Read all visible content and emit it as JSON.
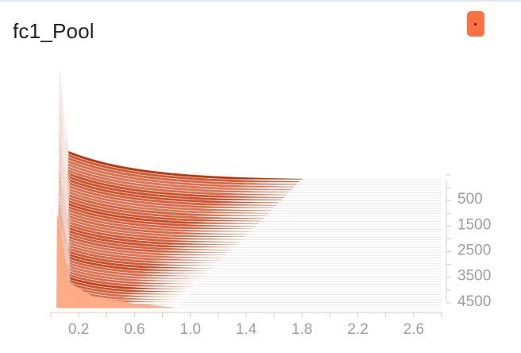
{
  "title": "fc1_Pool",
  "colors": {
    "chip": "#ff7043",
    "slice_light": "#ffd2bf",
    "slice_dark": "#bf360c",
    "axis_text": "#9e9e9e",
    "axis_line": "#cccccc"
  },
  "chart_data": {
    "type": "histogram-offset",
    "title": "fc1_Pool",
    "xlabel": "",
    "ylabel": "",
    "xlim": [
      0.0,
      2.8
    ],
    "ylim": [
      0,
      5000
    ],
    "x_ticks": [
      0.2,
      0.6,
      1.0,
      1.4,
      1.8,
      2.2,
      2.6
    ],
    "x_tick_labels": [
      "0.2",
      "0.6",
      "1.0",
      "1.4",
      "1.8",
      "2.2",
      "2.6"
    ],
    "step_ticks": [
      500,
      1500,
      2500,
      3500,
      4500
    ],
    "step_tick_labels": [
      "500",
      "1500",
      "2500",
      "3500",
      "4500"
    ],
    "slices": {
      "count": 50,
      "step_start": 0,
      "step_end": 5000,
      "peak_x": 0.05,
      "spike_start_fraction": 1.0,
      "spike_end_fraction": 0.55,
      "shoulder_x_start": 0.12,
      "shoulder_x_end": 0.14,
      "tail_end_x_start": 1.8,
      "tail_end_x_end": 0.9
    }
  }
}
